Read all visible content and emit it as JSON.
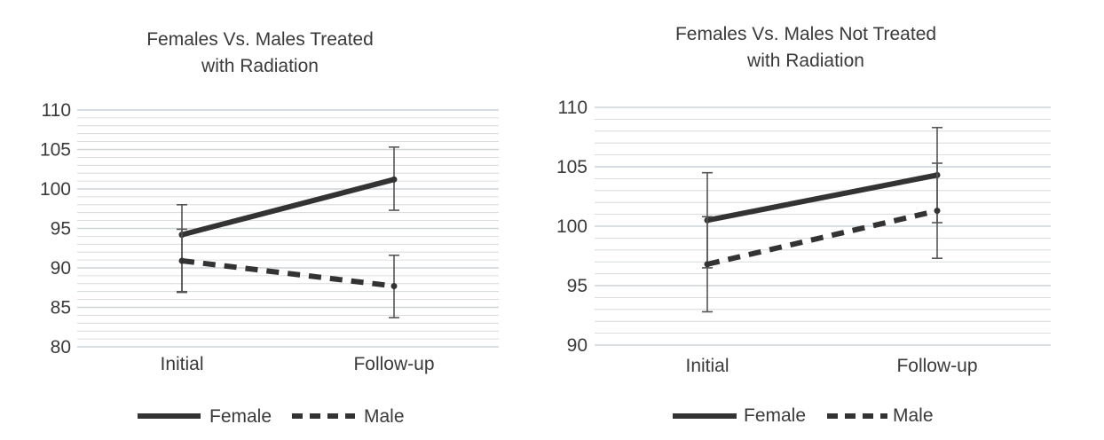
{
  "chart_data": [
    {
      "type": "line",
      "title_line1": "Females Vs. Males Treated",
      "title_line2": "with Radiation",
      "categories": [
        "Initial",
        "Follow-up"
      ],
      "ylim": [
        80,
        110
      ],
      "yticks": [
        80,
        85,
        90,
        95,
        100,
        105,
        110
      ],
      "minor_grid_step": 1,
      "grid": true,
      "legend": "bottom",
      "series": [
        {
          "name": "Female",
          "style": "solid",
          "values": [
            94.2,
            101.2
          ],
          "err_low": [
            86.9,
            97.3
          ],
          "err_high": [
            98.0,
            105.3
          ]
        },
        {
          "name": "Male",
          "style": "dashed",
          "values": [
            90.9,
            87.7
          ],
          "err_low": [
            87.0,
            83.7
          ],
          "err_high": [
            94.9,
            91.6
          ]
        }
      ]
    },
    {
      "type": "line",
      "title_line1": "Females Vs. Males Not Treated",
      "title_line2": "with Radiation",
      "categories": [
        "Initial",
        "Follow-up"
      ],
      "ylim": [
        90,
        110
      ],
      "yticks": [
        90,
        95,
        100,
        105,
        110
      ],
      "minor_grid_step": 1,
      "grid": true,
      "legend": "bottom",
      "series": [
        {
          "name": "Female",
          "style": "solid",
          "values": [
            100.5,
            104.3
          ],
          "err_low": [
            96.5,
            100.3
          ],
          "err_high": [
            104.5,
            108.3
          ]
        },
        {
          "name": "Male",
          "style": "dashed",
          "values": [
            96.8,
            101.3
          ],
          "err_low": [
            92.8,
            97.3
          ],
          "err_high": [
            100.8,
            105.3
          ]
        }
      ]
    }
  ],
  "colors": {
    "line": "#333333",
    "grid": "#cfd3d6",
    "error_bar": "#555555"
  }
}
